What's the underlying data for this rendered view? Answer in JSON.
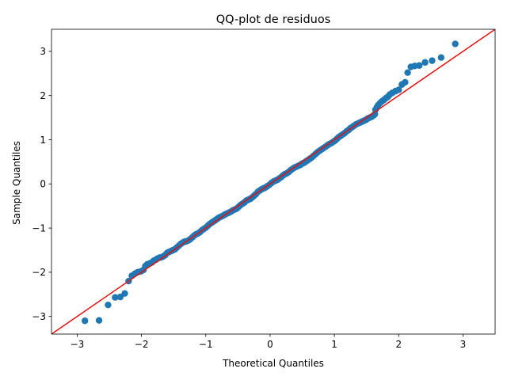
{
  "chart_data": {
    "type": "scatter",
    "title": "QQ-plot de residuos",
    "xlabel": "Theoretical Quantiles",
    "ylabel": "Sample Quantiles",
    "xlim": [
      -3.4,
      3.5
    ],
    "ylim": [
      -3.4,
      3.5
    ],
    "x_ticks": [
      -3,
      -2,
      -1,
      0,
      1,
      2,
      3
    ],
    "y_ticks": [
      -3,
      -2,
      -1,
      0,
      1,
      2,
      3
    ],
    "x_tick_labels": [
      "−3",
      "−2",
      "−1",
      "0",
      "1",
      "2",
      "3"
    ],
    "y_tick_labels": [
      "−3",
      "−2",
      "−1",
      "0",
      "1",
      "2",
      "3"
    ],
    "grid": false,
    "legend": "none",
    "colors": {
      "points": "#1f77b4",
      "reference_line": "#e8100e",
      "axes": "#000000"
    },
    "reference_line": {
      "slope": 1,
      "intercept": 0
    },
    "points": [
      [
        -2.88,
        -3.1
      ],
      [
        -2.66,
        -3.09
      ],
      [
        -2.52,
        -2.74
      ],
      [
        -2.41,
        -2.57
      ],
      [
        -2.33,
        -2.56
      ],
      [
        -2.26,
        -2.48
      ],
      [
        -2.2,
        -2.2
      ],
      [
        -2.15,
        -2.08
      ],
      [
        -2.1,
        -2.03
      ],
      [
        -2.06,
        -2.0
      ],
      [
        -2.01,
        -1.98
      ],
      [
        -1.97,
        -1.95
      ],
      [
        -1.94,
        -1.86
      ],
      [
        -1.91,
        -1.82
      ],
      [
        -1.87,
        -1.8
      ],
      [
        -1.84,
        -1.78
      ],
      [
        -1.81,
        -1.74
      ],
      [
        -1.78,
        -1.72
      ],
      [
        -1.75,
        -1.69
      ],
      [
        -1.72,
        -1.67
      ],
      [
        -1.69,
        -1.66
      ],
      [
        -1.66,
        -1.64
      ],
      [
        -1.63,
        -1.61
      ],
      [
        -1.6,
        -1.56
      ],
      [
        -1.57,
        -1.54
      ],
      [
        -1.54,
        -1.52
      ],
      [
        -1.51,
        -1.5
      ],
      [
        -1.48,
        -1.48
      ],
      [
        -1.45,
        -1.44
      ],
      [
        -1.42,
        -1.4
      ],
      [
        -1.39,
        -1.36
      ],
      [
        -1.36,
        -1.33
      ],
      [
        -1.33,
        -1.31
      ],
      [
        -1.3,
        -1.3
      ],
      [
        -1.27,
        -1.28
      ],
      [
        -1.24,
        -1.25
      ],
      [
        -1.21,
        -1.21
      ],
      [
        -1.18,
        -1.17
      ],
      [
        -1.15,
        -1.14
      ],
      [
        -1.12,
        -1.12
      ],
      [
        -1.09,
        -1.09
      ],
      [
        -1.06,
        -1.05
      ],
      [
        -1.03,
        -1.02
      ],
      [
        -1.0,
        -0.99
      ],
      [
        -0.97,
        -0.95
      ],
      [
        -0.94,
        -0.91
      ],
      [
        -0.91,
        -0.88
      ],
      [
        -0.88,
        -0.85
      ],
      [
        -0.85,
        -0.82
      ],
      [
        -0.82,
        -0.79
      ],
      [
        -0.79,
        -0.76
      ],
      [
        -0.76,
        -0.74
      ],
      [
        -0.73,
        -0.72
      ],
      [
        -0.7,
        -0.69
      ],
      [
        -0.67,
        -0.67
      ],
      [
        -0.64,
        -0.65
      ],
      [
        -0.61,
        -0.63
      ],
      [
        -0.58,
        -0.6
      ],
      [
        -0.55,
        -0.58
      ],
      [
        -0.52,
        -0.56
      ],
      [
        -0.49,
        -0.52
      ],
      [
        -0.46,
        -0.48
      ],
      [
        -0.43,
        -0.45
      ],
      [
        -0.4,
        -0.42
      ],
      [
        -0.37,
        -0.38
      ],
      [
        -0.34,
        -0.36
      ],
      [
        -0.31,
        -0.34
      ],
      [
        -0.28,
        -0.31
      ],
      [
        -0.25,
        -0.27
      ],
      [
        -0.22,
        -0.23
      ],
      [
        -0.19,
        -0.18
      ],
      [
        -0.16,
        -0.15
      ],
      [
        -0.13,
        -0.12
      ],
      [
        -0.1,
        -0.1
      ],
      [
        -0.07,
        -0.08
      ],
      [
        -0.04,
        -0.05
      ],
      [
        -0.01,
        -0.02
      ],
      [
        0.02,
        0.02
      ],
      [
        0.05,
        0.05
      ],
      [
        0.08,
        0.07
      ],
      [
        0.11,
        0.09
      ],
      [
        0.14,
        0.12
      ],
      [
        0.17,
        0.15
      ],
      [
        0.2,
        0.19
      ],
      [
        0.23,
        0.22
      ],
      [
        0.26,
        0.24
      ],
      [
        0.29,
        0.27
      ],
      [
        0.32,
        0.31
      ],
      [
        0.35,
        0.34
      ],
      [
        0.38,
        0.37
      ],
      [
        0.41,
        0.39
      ],
      [
        0.44,
        0.41
      ],
      [
        0.47,
        0.43
      ],
      [
        0.5,
        0.46
      ],
      [
        0.53,
        0.48
      ],
      [
        0.56,
        0.51
      ],
      [
        0.59,
        0.54
      ],
      [
        0.62,
        0.57
      ],
      [
        0.65,
        0.6
      ],
      [
        0.68,
        0.64
      ],
      [
        0.71,
        0.68
      ],
      [
        0.74,
        0.72
      ],
      [
        0.77,
        0.75
      ],
      [
        0.8,
        0.78
      ],
      [
        0.83,
        0.81
      ],
      [
        0.86,
        0.84
      ],
      [
        0.89,
        0.87
      ],
      [
        0.92,
        0.9
      ],
      [
        0.95,
        0.92
      ],
      [
        0.98,
        0.95
      ],
      [
        1.01,
        0.98
      ],
      [
        1.04,
        1.02
      ],
      [
        1.07,
        1.06
      ],
      [
        1.1,
        1.09
      ],
      [
        1.13,
        1.12
      ],
      [
        1.16,
        1.15
      ],
      [
        1.19,
        1.19
      ],
      [
        1.22,
        1.22
      ],
      [
        1.25,
        1.26
      ],
      [
        1.28,
        1.29
      ],
      [
        1.31,
        1.32
      ],
      [
        1.34,
        1.35
      ],
      [
        1.37,
        1.37
      ],
      [
        1.4,
        1.39
      ],
      [
        1.43,
        1.41
      ],
      [
        1.46,
        1.43
      ],
      [
        1.49,
        1.45
      ],
      [
        1.52,
        1.48
      ],
      [
        1.55,
        1.5
      ],
      [
        1.58,
        1.52
      ],
      [
        1.61,
        1.55
      ],
      [
        1.63,
        1.58
      ],
      [
        1.64,
        1.68
      ],
      [
        1.66,
        1.73
      ],
      [
        1.68,
        1.78
      ],
      [
        1.71,
        1.83
      ],
      [
        1.74,
        1.87
      ],
      [
        1.77,
        1.9
      ],
      [
        1.8,
        1.94
      ],
      [
        1.83,
        1.97
      ],
      [
        1.86,
        2.02
      ],
      [
        1.9,
        2.06
      ],
      [
        1.95,
        2.1
      ],
      [
        2.0,
        2.13
      ],
      [
        2.05,
        2.25
      ],
      [
        2.1,
        2.3
      ],
      [
        2.14,
        2.52
      ],
      [
        2.19,
        2.65
      ],
      [
        2.25,
        2.67
      ],
      [
        2.32,
        2.68
      ],
      [
        2.41,
        2.75
      ],
      [
        2.52,
        2.79
      ],
      [
        2.66,
        2.86
      ],
      [
        2.88,
        3.17
      ]
    ]
  }
}
